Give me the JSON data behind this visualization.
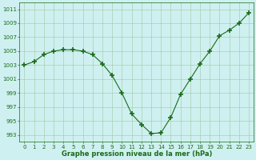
{
  "x": [
    0,
    1,
    2,
    3,
    4,
    5,
    6,
    7,
    8,
    9,
    10,
    11,
    12,
    13,
    14,
    15,
    16,
    17,
    18,
    19,
    20,
    21,
    22,
    23
  ],
  "y": [
    1003,
    1003.5,
    1004.5,
    1005,
    1005.2,
    1005.2,
    1005,
    1004.5,
    1003.2,
    1001.5,
    999,
    996,
    994.5,
    993.2,
    993.3,
    995.5,
    998.8,
    1001,
    1003.2,
    1005,
    1007.2,
    1008,
    1009,
    1010.5
  ],
  "line_color": "#1a6b1a",
  "marker": "+",
  "marker_size": 4,
  "marker_lw": 1.2,
  "bg_color": "#cff0f0",
  "grid_color": "#a0c8a0",
  "ylabel_ticks": [
    993,
    995,
    997,
    999,
    1001,
    1003,
    1005,
    1007,
    1009,
    1011
  ],
  "xlabel": "Graphe pression niveau de la mer (hPa)",
  "xlim": [
    -0.5,
    23.5
  ],
  "ylim": [
    992,
    1012
  ],
  "tick_color": "#1a6b1a",
  "label_color": "#1a6b1a",
  "tick_fontsize": 5,
  "xlabel_fontsize": 6,
  "linewidth": 0.8
}
